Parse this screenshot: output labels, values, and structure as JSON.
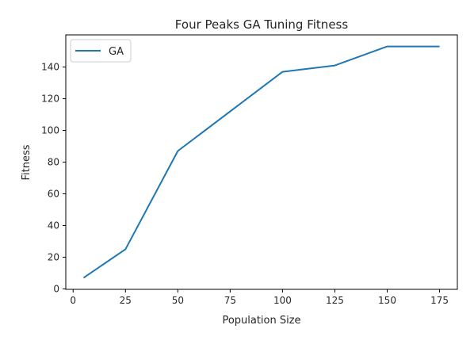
{
  "chart_data": {
    "type": "line",
    "title": "Four Peaks GA Tuning Fitness",
    "xlabel": "Population Size",
    "ylabel": "Fitness",
    "x": [
      5,
      25,
      50,
      100,
      125,
      150,
      175
    ],
    "series": [
      {
        "name": "GA",
        "values": [
          7,
          25,
          87,
          137,
          141,
          153,
          153
        ],
        "color": "#1f77b4"
      }
    ],
    "xlim": [
      -3.5,
      183.5
    ],
    "ylim": [
      -0.3,
      160.3
    ],
    "xticks": [
      0,
      25,
      50,
      75,
      100,
      125,
      150,
      175
    ],
    "yticks": [
      0,
      20,
      40,
      60,
      80,
      100,
      120,
      140
    ],
    "grid": false,
    "legend": "top-left"
  }
}
